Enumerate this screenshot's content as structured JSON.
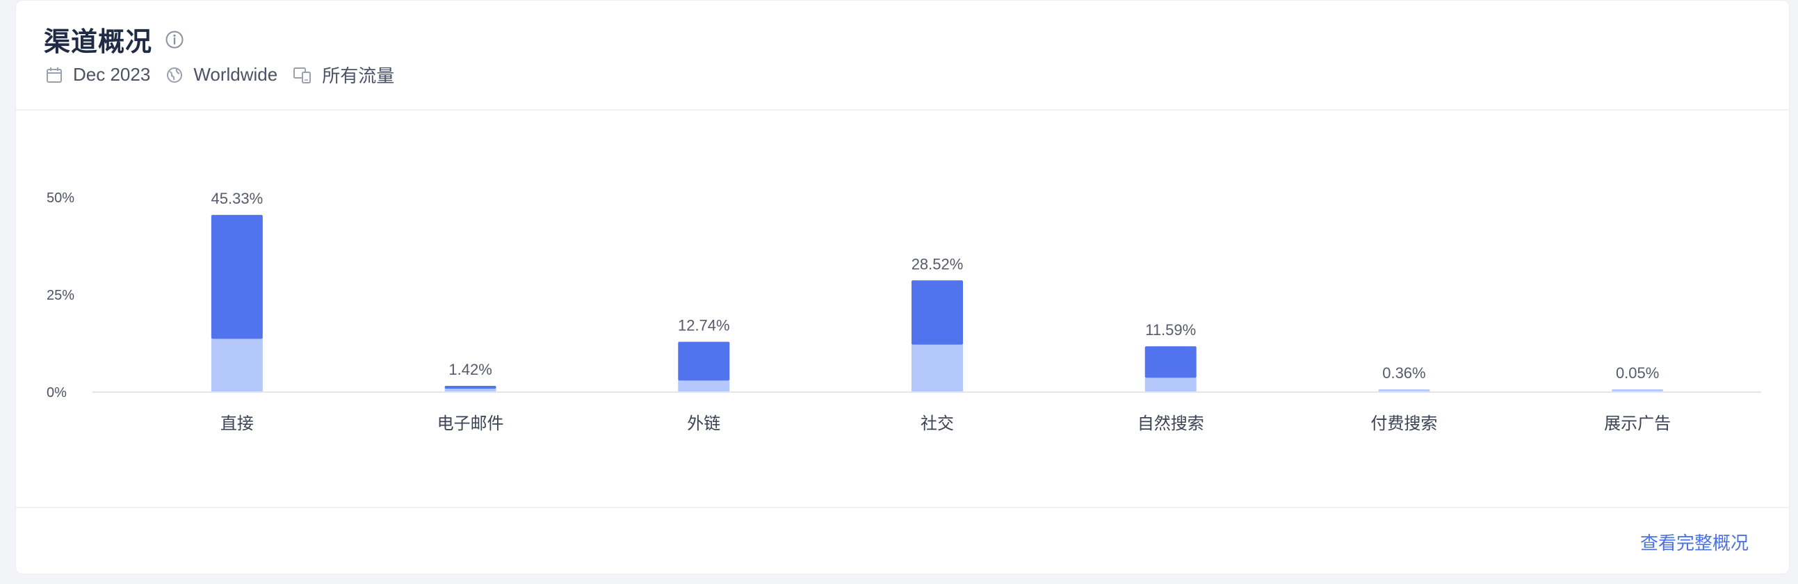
{
  "header": {
    "title": "渠道概况",
    "meta": {
      "date": "Dec 2023",
      "region": "Worldwide",
      "traffic": "所有流量"
    }
  },
  "footer": {
    "link_label": "查看完整概况"
  },
  "colors": {
    "dark_bar": "#5273ee",
    "light_bar": "#b5c8fb",
    "axis_text": "#4b5264",
    "value_text": "#555b6b"
  },
  "chart_data": {
    "type": "bar",
    "stacked": true,
    "categories": [
      "直接",
      "电子邮件",
      "外链",
      "社交",
      "自然搜索",
      "付费搜索",
      "展示广告"
    ],
    "totals": [
      45.33,
      1.42,
      12.74,
      28.52,
      11.59,
      0.36,
      0.05
    ],
    "total_labels": [
      "45.33%",
      "1.42%",
      "12.74%",
      "28.52%",
      "11.59%",
      "0.36%",
      "0.05%"
    ],
    "series": [
      {
        "values": [
          13.5,
          0.7,
          2.8,
          12.0,
          3.5,
          0.3,
          0.05
        ]
      },
      {
        "values": [
          31.83,
          0.72,
          9.94,
          16.52,
          8.09,
          0.06,
          0.0
        ]
      }
    ],
    "yticks": [
      0,
      25,
      50
    ],
    "ytick_labels": [
      "0%",
      "25%",
      "50%"
    ],
    "ylim": [
      0,
      50
    ],
    "grid": false
  }
}
